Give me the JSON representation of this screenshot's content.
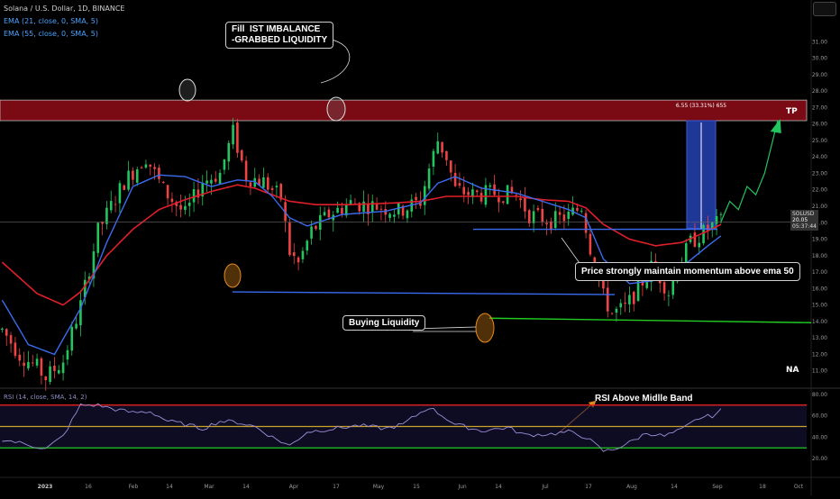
{
  "header": {
    "title": "Solana / U.S. Dollar, 1D, BINANCE",
    "ema1": "EMA (21, close, 0, SMA, 5)",
    "ema2": "EMA (55, close, 0, SMA, 5)"
  },
  "rsi_label": "RSI (14, close, SMA, 14, 2)",
  "annotations": {
    "imbalance": "Fill  IST IMBALANCE\n-GRABBED LIQUIDITY",
    "buying": "Buying Liquidity",
    "momentum": "Price strongly maintain momentum above ema 50",
    "rsi": "RSI Above Midlle Band",
    "tp": "TP",
    "na": "NA",
    "measure": "6.55 (33.31%) 655"
  },
  "ticker": {
    "symbol": "SOLUSD",
    "price": "20.05",
    "countdown": "05:37:44"
  },
  "colors": {
    "zone": "#7a0a14",
    "ema_fast": "#3b6cf0",
    "ema_slow": "#e01f2a",
    "up": "#22c55e",
    "down": "#ef4444",
    "arrow": "#22c55e",
    "rsi_line": "#9b8fd8",
    "rsi_high": "#ff2222",
    "rsi_mid": "#c9a227",
    "rsi_low": "#22cc22",
    "measure": "#2541b2"
  },
  "chart_data": [
    {
      "type": "candlestick",
      "title": "Solana / U.S. Dollar, 1D, BINANCE",
      "x_ticks": [
        "2023",
        "16",
        "Feb",
        "14",
        "Mar",
        "14",
        "Apr",
        "17",
        "May",
        "15",
        "Jun",
        "14",
        "Jul",
        "17",
        "Aug",
        "14",
        "Sep",
        "18",
        "Oct"
      ],
      "y_ticks": [
        11,
        12,
        13,
        14,
        15,
        16,
        17,
        18,
        19,
        20,
        21,
        22,
        23,
        24,
        25,
        26,
        27,
        28,
        29,
        30,
        31
      ],
      "ylim": [
        10,
        32
      ],
      "path_knots": [
        [
          0,
          13.5
        ],
        [
          4,
          12.0
        ],
        [
          8,
          11.2
        ],
        [
          10,
          10.6
        ],
        [
          14,
          11.6
        ],
        [
          18,
          15.0
        ],
        [
          22,
          19.5
        ],
        [
          28,
          22.5
        ],
        [
          33,
          24.0
        ],
        [
          37,
          22.0
        ],
        [
          42,
          20.5
        ],
        [
          46,
          22.5
        ],
        [
          50,
          23.0
        ],
        [
          53,
          25.5
        ],
        [
          56,
          22.8
        ],
        [
          60,
          22.5
        ],
        [
          64,
          21.5
        ],
        [
          66,
          18.2
        ],
        [
          68,
          17.5
        ],
        [
          71,
          19.5
        ],
        [
          75,
          20.5
        ],
        [
          80,
          21.2
        ],
        [
          86,
          21.0
        ],
        [
          91,
          20.7
        ],
        [
          96,
          21.3
        ],
        [
          98,
          23.3
        ],
        [
          100,
          25.0
        ],
        [
          102,
          24.0
        ],
        [
          104,
          22.0
        ],
        [
          108,
          21.7
        ],
        [
          113,
          21.8
        ],
        [
          118,
          21.7
        ],
        [
          121,
          20.5
        ],
        [
          126,
          20.1
        ],
        [
          130,
          20.4
        ],
        [
          133,
          21.0
        ],
        [
          135,
          18.5
        ],
        [
          138,
          15.5
        ],
        [
          140,
          14.5
        ],
        [
          143,
          14.8
        ],
        [
          146,
          16.0
        ],
        [
          149,
          17.3
        ],
        [
          151,
          16.7
        ],
        [
          153,
          15.8
        ],
        [
          155,
          17.2
        ],
        [
          158,
          18.8
        ],
        [
          161,
          19.4
        ],
        [
          163,
          19.8
        ],
        [
          165,
          20.05
        ]
      ],
      "ema_fast_knots": [
        [
          0,
          15.3
        ],
        [
          6,
          12.6
        ],
        [
          12,
          12.0
        ],
        [
          18,
          14.8
        ],
        [
          24,
          18.8
        ],
        [
          30,
          22.2
        ],
        [
          36,
          22.9
        ],
        [
          42,
          22.8
        ],
        [
          48,
          22.2
        ],
        [
          54,
          22.6
        ],
        [
          58,
          22.5
        ],
        [
          62,
          21.6
        ],
        [
          66,
          20.3
        ],
        [
          70,
          19.8
        ],
        [
          78,
          20.5
        ],
        [
          88,
          20.7
        ],
        [
          96,
          21.2
        ],
        [
          100,
          22.4
        ],
        [
          104,
          22.8
        ],
        [
          110,
          22.1
        ],
        [
          118,
          21.8
        ],
        [
          124,
          21.3
        ],
        [
          130,
          20.8
        ],
        [
          134,
          20.3
        ],
        [
          138,
          17.8
        ],
        [
          144,
          16.3
        ],
        [
          150,
          16.5
        ],
        [
          156,
          17.3
        ],
        [
          162,
          18.6
        ],
        [
          165,
          19.2
        ]
      ],
      "ema_slow_knots": [
        [
          0,
          17.6
        ],
        [
          8,
          15.7
        ],
        [
          14,
          15.0
        ],
        [
          18,
          15.8
        ],
        [
          24,
          18.0
        ],
        [
          30,
          19.6
        ],
        [
          36,
          20.8
        ],
        [
          42,
          21.4
        ],
        [
          48,
          21.9
        ],
        [
          54,
          22.3
        ],
        [
          58,
          22.1
        ],
        [
          62,
          21.7
        ],
        [
          66,
          21.3
        ],
        [
          72,
          21.1
        ],
        [
          80,
          21.1
        ],
        [
          90,
          21.2
        ],
        [
          96,
          21.3
        ],
        [
          102,
          21.6
        ],
        [
          110,
          21.6
        ],
        [
          118,
          21.6
        ],
        [
          124,
          21.4
        ],
        [
          130,
          21.3
        ],
        [
          134,
          20.9
        ],
        [
          138,
          19.9
        ],
        [
          144,
          19.0
        ],
        [
          150,
          18.6
        ],
        [
          156,
          18.8
        ],
        [
          162,
          19.5
        ],
        [
          165,
          19.9
        ]
      ],
      "projection": [
        [
          165,
          20.05
        ],
        [
          167,
          21.3
        ],
        [
          169,
          20.8
        ],
        [
          171,
          22.2
        ],
        [
          173,
          21.7
        ],
        [
          175,
          23.0
        ],
        [
          178,
          26.2
        ]
      ],
      "levels": [
        {
          "name": "imbalance-zone",
          "from": 26.2,
          "to": 27.45
        },
        {
          "name": "current-price",
          "value": 20.05
        },
        {
          "name": "blue-level",
          "value": 19.6
        },
        {
          "name": "support-level",
          "value": 15.8
        },
        {
          "name": "buying-liquidity-line",
          "value": 14.2
        }
      ],
      "measure": {
        "from": 19.65,
        "to": 26.2,
        "label": "6.55 (33.31%) 655"
      }
    },
    {
      "type": "line",
      "title": "RSI (14, close, SMA, 14, 2)",
      "y_ticks": [
        20,
        40,
        60,
        80
      ],
      "ylim": [
        15,
        85
      ],
      "bands": [
        70,
        50,
        30
      ],
      "rsi_knots": [
        [
          0,
          38
        ],
        [
          6,
          33
        ],
        [
          10,
          29
        ],
        [
          14,
          41
        ],
        [
          18,
          70
        ],
        [
          22,
          70
        ],
        [
          26,
          66
        ],
        [
          30,
          63
        ],
        [
          34,
          64
        ],
        [
          38,
          55
        ],
        [
          42,
          52
        ],
        [
          46,
          48
        ],
        [
          50,
          55
        ],
        [
          54,
          54
        ],
        [
          58,
          50
        ],
        [
          62,
          40
        ],
        [
          66,
          32
        ],
        [
          70,
          45
        ],
        [
          76,
          48
        ],
        [
          82,
          51
        ],
        [
          88,
          48
        ],
        [
          92,
          52
        ],
        [
          96,
          63
        ],
        [
          98,
          68
        ],
        [
          100,
          63
        ],
        [
          104,
          52
        ],
        [
          110,
          46
        ],
        [
          116,
          49
        ],
        [
          120,
          42
        ],
        [
          126,
          43
        ],
        [
          130,
          45
        ],
        [
          134,
          40
        ],
        [
          138,
          27
        ],
        [
          140,
          28
        ],
        [
          144,
          35
        ],
        [
          148,
          44
        ],
        [
          152,
          41
        ],
        [
          156,
          47
        ],
        [
          160,
          58
        ],
        [
          163,
          60
        ],
        [
          165,
          65
        ]
      ]
    }
  ]
}
